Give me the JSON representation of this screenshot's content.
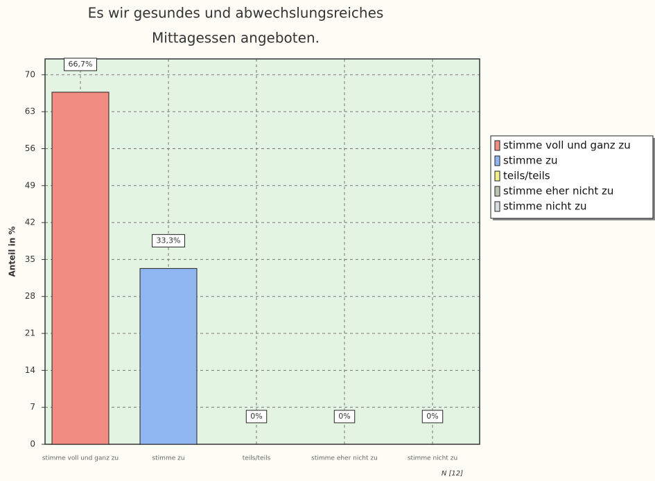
{
  "chart_data": {
    "type": "bar",
    "title": [
      "Es wir gesundes und abwechslungsreiches",
      "Mittagessen angeboten."
    ],
    "y_label": "Anteil in %",
    "note": "N [12]",
    "categories": [
      "stimme voll und ganz zu",
      "stimme zu",
      "teils/teils",
      "stimme eher nicht zu",
      "stimme nicht zu"
    ],
    "values": [
      66.7,
      33.3,
      0,
      0,
      0
    ],
    "value_labels": [
      "66,7%",
      "33,3%",
      "0%",
      "0%",
      "0%"
    ],
    "colors": [
      "#f08c82",
      "#90b6f2",
      "#f3ef8a",
      "#b9c6b2",
      "#d9dde0"
    ],
    "ylim": [
      0,
      73
    ],
    "yticks": [
      0,
      7,
      14,
      21,
      28,
      35,
      42,
      49,
      56,
      63,
      70
    ],
    "grid": true,
    "legend": "right"
  }
}
